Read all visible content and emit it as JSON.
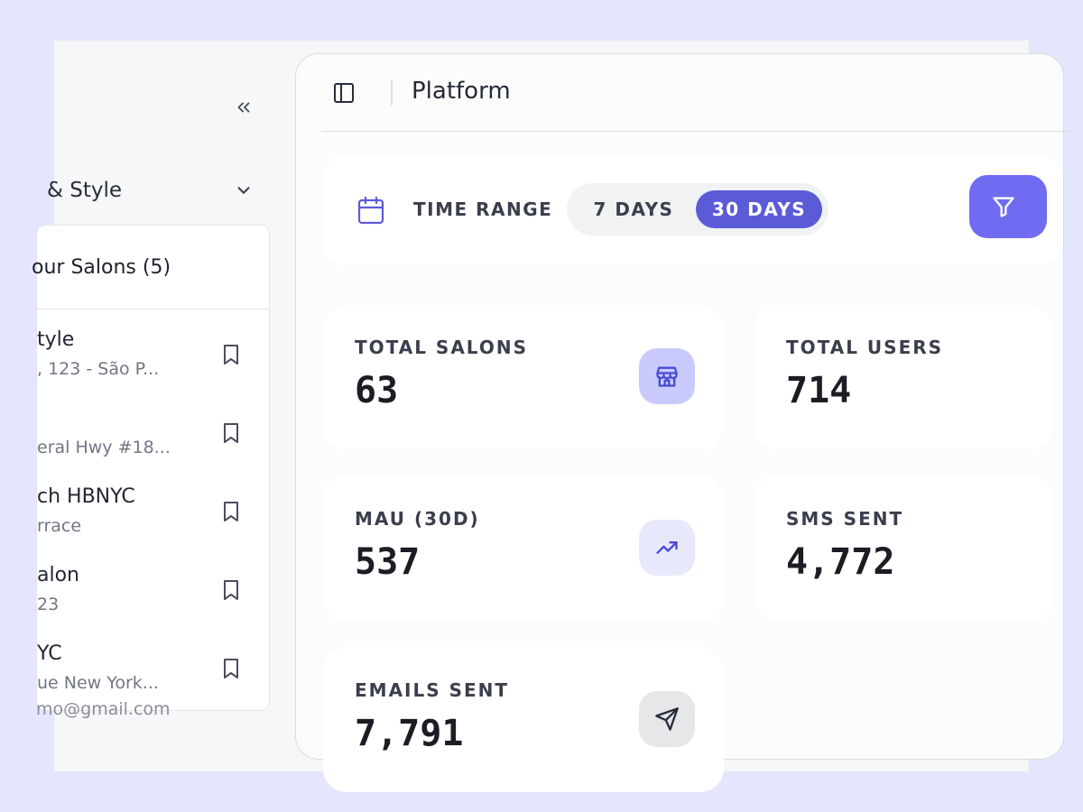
{
  "sidebar": {
    "group_label": "& Style",
    "panel_title": "our Salons (5)",
    "salons": [
      {
        "name": "tyle",
        "address": ", 123 - São P..."
      },
      {
        "name": "",
        "address": "eral Hwy #18..."
      },
      {
        "name": "ch HBNYC",
        "address": "rrace"
      },
      {
        "name": "alon",
        "address": "23"
      },
      {
        "name": "YC",
        "address": "ue New York..."
      }
    ],
    "user_email": "mo@gmail.com"
  },
  "topbar": {
    "title": "Platform"
  },
  "time_range": {
    "label": "TIME RANGE",
    "options": [
      "7 DAYS",
      "30 DAYS"
    ],
    "selected": "30 DAYS"
  },
  "stats": {
    "total_salons": {
      "label": "TOTAL SALONS",
      "value": "63",
      "icon": "store-icon",
      "icon_bg": "#c9cafb",
      "icon_color": "#4a4bd4"
    },
    "total_users": {
      "label": "TOTAL USERS",
      "value": "714"
    },
    "mau": {
      "label": "MAU (30D)",
      "value": "537",
      "icon": "trending-up-icon",
      "icon_bg": "#e8e8fb",
      "icon_color": "#4a4bd4"
    },
    "sms_sent": {
      "label": "SMS SENT",
      "value": "4,772"
    },
    "emails_sent": {
      "label": "EMAILS SENT",
      "value": "7,791",
      "icon": "send-icon",
      "icon_bg": "#e6e7e9",
      "icon_color": "#2a2d3b"
    }
  },
  "colors": {
    "accent": "#5b5bd8",
    "filter_button": "#6f6cf2",
    "page_background": "#e3e6fc"
  }
}
